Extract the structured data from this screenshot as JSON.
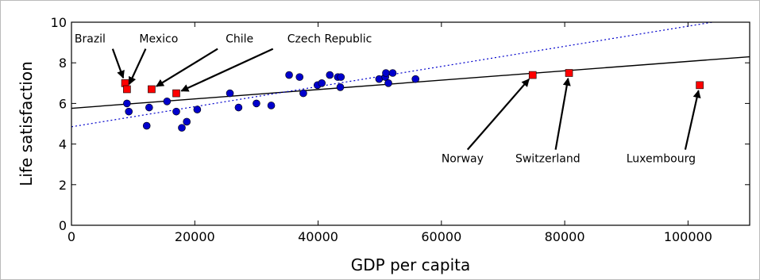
{
  "chart_data": {
    "type": "scatter",
    "title": "",
    "xlabel": "GDP per capita",
    "ylabel": "Life satisfaction",
    "xlim": [
      0,
      110000
    ],
    "ylim": [
      0,
      10
    ],
    "xticks": [
      "0",
      "20000",
      "40000",
      "60000",
      "80000",
      "100000"
    ],
    "yticks": [
      "0",
      "2",
      "4",
      "6",
      "8",
      "10"
    ],
    "grid": false,
    "series": [
      {
        "marker": "circle",
        "color": "#0000cc",
        "x": [
          9000,
          9300,
          12200,
          12600,
          15500,
          17000,
          17900,
          18700,
          20400,
          25700,
          27100,
          30000,
          32400,
          35300,
          37000,
          37600,
          39900,
          40600,
          41900,
          43200,
          43600,
          43700,
          49900,
          50900,
          51000,
          51400,
          52100,
          55800
        ],
        "y": [
          6.0,
          5.6,
          4.9,
          5.8,
          6.1,
          5.6,
          4.8,
          5.1,
          5.7,
          6.5,
          5.8,
          6.0,
          5.9,
          7.4,
          7.3,
          6.5,
          6.9,
          7.0,
          7.4,
          7.3,
          6.8,
          7.3,
          7.2,
          7.3,
          7.5,
          7.0,
          7.5,
          7.2
        ]
      },
      {
        "marker": "square",
        "color": "#ff0000",
        "x": [
          8700,
          9000,
          13000,
          17000,
          74800,
          80700,
          101900
        ],
        "y": [
          7.0,
          6.7,
          6.7,
          6.5,
          7.4,
          7.5,
          6.9
        ]
      }
    ],
    "lines": [
      {
        "style": "solid",
        "color": "#000000",
        "x": [
          0,
          110000
        ],
        "y": [
          5.76,
          8.3
        ]
      },
      {
        "style": "dotted",
        "color": "#0000cc",
        "x": [
          0,
          110000
        ],
        "y": [
          4.85,
          10.3
        ]
      }
    ],
    "annotations": [
      {
        "label": "Brazil",
        "point": [
          8700,
          7.0
        ],
        "text_at": [
          500,
          9.0
        ]
      },
      {
        "label": "Mexico",
        "point": [
          9000,
          6.7
        ],
        "text_at": [
          11000,
          9.0
        ]
      },
      {
        "label": "Chile",
        "point": [
          13000,
          6.7
        ],
        "text_at": [
          25000,
          9.0
        ]
      },
      {
        "label": "Czech Republic",
        "point": [
          17000,
          6.5
        ],
        "text_at": [
          35000,
          9.0
        ]
      },
      {
        "label": "Norway",
        "point": [
          74800,
          7.4
        ],
        "text_at": [
          60000,
          3.1
        ]
      },
      {
        "label": "Switzerland",
        "point": [
          80700,
          7.5
        ],
        "text_at": [
          72000,
          3.1
        ]
      },
      {
        "label": "Luxembourg",
        "point": [
          101900,
          6.9
        ],
        "text_at": [
          90000,
          3.1
        ]
      }
    ]
  }
}
